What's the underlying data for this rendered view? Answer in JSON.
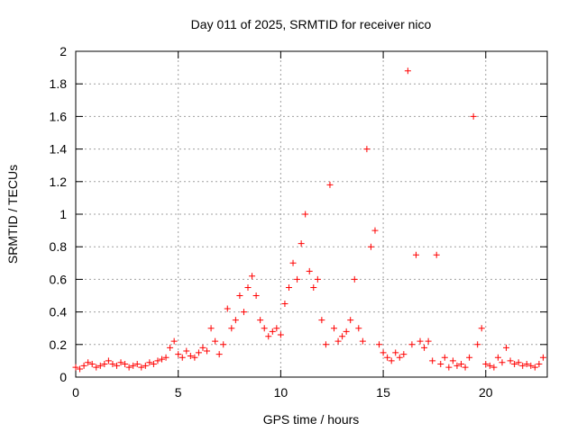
{
  "chart_data": {
    "type": "scatter",
    "title": "Day 011 of 2025, SRMTID for receiver nico",
    "xlabel": "GPS time / hours",
    "ylabel": "SRMTID / TECUs",
    "xlim": [
      0,
      23
    ],
    "ylim": [
      0,
      2
    ],
    "xticks": [
      0,
      5,
      10,
      15,
      20
    ],
    "xtick_labels": [
      "0",
      "5",
      "10",
      "15",
      "20"
    ],
    "yticks": [
      0,
      0.2,
      0.4,
      0.6,
      0.8,
      1,
      1.2,
      1.4,
      1.6,
      1.8,
      2
    ],
    "ytick_labels": [
      "0",
      "0.2",
      "0.4",
      "0.6",
      "0.8",
      "1",
      "1.2",
      "1.4",
      "1.6",
      "1.8",
      "2"
    ],
    "grid": true,
    "marker": "plus",
    "color": "#ff0000",
    "series": [
      {
        "name": "SRMTID",
        "x": [
          0.0,
          0.2,
          0.4,
          0.6,
          0.8,
          1.0,
          1.2,
          1.4,
          1.6,
          1.8,
          2.0,
          2.2,
          2.4,
          2.6,
          2.8,
          3.0,
          3.2,
          3.4,
          3.6,
          3.8,
          4.0,
          4.2,
          4.4,
          4.6,
          4.8,
          5.0,
          5.2,
          5.4,
          5.6,
          5.8,
          6.0,
          6.2,
          6.4,
          6.6,
          6.8,
          7.0,
          7.2,
          7.4,
          7.6,
          7.8,
          8.0,
          8.2,
          8.4,
          8.6,
          8.8,
          9.0,
          9.2,
          9.4,
          9.6,
          9.8,
          10.0,
          10.2,
          10.4,
          10.6,
          10.8,
          11.0,
          11.2,
          11.4,
          11.6,
          11.8,
          12.0,
          12.2,
          12.4,
          12.6,
          12.8,
          13.0,
          13.2,
          13.4,
          13.6,
          13.8,
          14.0,
          14.2,
          14.4,
          14.6,
          14.8,
          15.0,
          15.2,
          15.4,
          15.6,
          15.8,
          16.0,
          16.2,
          16.4,
          16.6,
          16.8,
          17.0,
          17.2,
          17.4,
          17.6,
          17.8,
          18.0,
          18.2,
          18.4,
          18.6,
          18.8,
          19.0,
          19.2,
          19.4,
          19.6,
          19.8,
          20.0,
          20.2,
          20.4,
          20.6,
          20.8,
          21.0,
          21.2,
          21.4,
          21.6,
          21.8,
          22.0,
          22.2,
          22.4,
          22.6,
          22.8
        ],
        "y": [
          0.06,
          0.05,
          0.07,
          0.09,
          0.08,
          0.06,
          0.07,
          0.08,
          0.1,
          0.08,
          0.07,
          0.09,
          0.08,
          0.06,
          0.07,
          0.08,
          0.06,
          0.07,
          0.09,
          0.08,
          0.1,
          0.11,
          0.12,
          0.18,
          0.22,
          0.14,
          0.12,
          0.16,
          0.13,
          0.12,
          0.15,
          0.18,
          0.16,
          0.3,
          0.22,
          0.14,
          0.2,
          0.42,
          0.3,
          0.35,
          0.5,
          0.4,
          0.55,
          0.62,
          0.5,
          0.35,
          0.3,
          0.25,
          0.28,
          0.3,
          0.26,
          0.45,
          0.55,
          0.7,
          0.6,
          0.82,
          1.0,
          0.65,
          0.55,
          0.6,
          0.35,
          0.2,
          1.18,
          0.3,
          0.22,
          0.25,
          0.28,
          0.35,
          0.6,
          0.3,
          0.22,
          1.4,
          0.8,
          0.9,
          0.2,
          0.15,
          0.12,
          0.1,
          0.15,
          0.12,
          0.14,
          1.88,
          0.2,
          0.75,
          0.22,
          0.18,
          0.22,
          0.1,
          0.75,
          0.08,
          0.12,
          0.06,
          0.1,
          0.07,
          0.08,
          0.06,
          0.12,
          1.6,
          0.2,
          0.3,
          0.08,
          0.07,
          0.06,
          0.12,
          0.09,
          0.18,
          0.1,
          0.08,
          0.09,
          0.07,
          0.08,
          0.07,
          0.06,
          0.08,
          0.12
        ]
      }
    ]
  }
}
